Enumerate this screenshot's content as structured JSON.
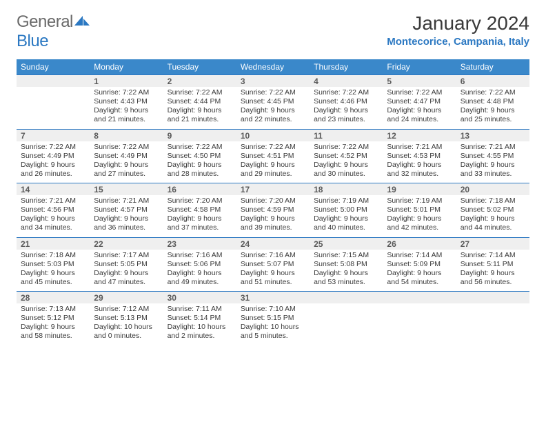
{
  "brand": {
    "name_part1": "General",
    "name_part2": "Blue"
  },
  "colors": {
    "header_bg": "#3a88ca",
    "brand_blue": "#2b78c2",
    "daybar_bg": "#efefef",
    "text": "#3a3a3a"
  },
  "title": "January 2024",
  "location": "Montecorice, Campania, Italy",
  "weekdays": [
    "Sunday",
    "Monday",
    "Tuesday",
    "Wednesday",
    "Thursday",
    "Friday",
    "Saturday"
  ],
  "weeks": [
    [
      null,
      {
        "n": "1",
        "sunrise": "Sunrise: 7:22 AM",
        "sunset": "Sunset: 4:43 PM",
        "daylight": "Daylight: 9 hours and 21 minutes."
      },
      {
        "n": "2",
        "sunrise": "Sunrise: 7:22 AM",
        "sunset": "Sunset: 4:44 PM",
        "daylight": "Daylight: 9 hours and 21 minutes."
      },
      {
        "n": "3",
        "sunrise": "Sunrise: 7:22 AM",
        "sunset": "Sunset: 4:45 PM",
        "daylight": "Daylight: 9 hours and 22 minutes."
      },
      {
        "n": "4",
        "sunrise": "Sunrise: 7:22 AM",
        "sunset": "Sunset: 4:46 PM",
        "daylight": "Daylight: 9 hours and 23 minutes."
      },
      {
        "n": "5",
        "sunrise": "Sunrise: 7:22 AM",
        "sunset": "Sunset: 4:47 PM",
        "daylight": "Daylight: 9 hours and 24 minutes."
      },
      {
        "n": "6",
        "sunrise": "Sunrise: 7:22 AM",
        "sunset": "Sunset: 4:48 PM",
        "daylight": "Daylight: 9 hours and 25 minutes."
      }
    ],
    [
      {
        "n": "7",
        "sunrise": "Sunrise: 7:22 AM",
        "sunset": "Sunset: 4:49 PM",
        "daylight": "Daylight: 9 hours and 26 minutes."
      },
      {
        "n": "8",
        "sunrise": "Sunrise: 7:22 AM",
        "sunset": "Sunset: 4:49 PM",
        "daylight": "Daylight: 9 hours and 27 minutes."
      },
      {
        "n": "9",
        "sunrise": "Sunrise: 7:22 AM",
        "sunset": "Sunset: 4:50 PM",
        "daylight": "Daylight: 9 hours and 28 minutes."
      },
      {
        "n": "10",
        "sunrise": "Sunrise: 7:22 AM",
        "sunset": "Sunset: 4:51 PM",
        "daylight": "Daylight: 9 hours and 29 minutes."
      },
      {
        "n": "11",
        "sunrise": "Sunrise: 7:22 AM",
        "sunset": "Sunset: 4:52 PM",
        "daylight": "Daylight: 9 hours and 30 minutes."
      },
      {
        "n": "12",
        "sunrise": "Sunrise: 7:21 AM",
        "sunset": "Sunset: 4:53 PM",
        "daylight": "Daylight: 9 hours and 32 minutes."
      },
      {
        "n": "13",
        "sunrise": "Sunrise: 7:21 AM",
        "sunset": "Sunset: 4:55 PM",
        "daylight": "Daylight: 9 hours and 33 minutes."
      }
    ],
    [
      {
        "n": "14",
        "sunrise": "Sunrise: 7:21 AM",
        "sunset": "Sunset: 4:56 PM",
        "daylight": "Daylight: 9 hours and 34 minutes."
      },
      {
        "n": "15",
        "sunrise": "Sunrise: 7:21 AM",
        "sunset": "Sunset: 4:57 PM",
        "daylight": "Daylight: 9 hours and 36 minutes."
      },
      {
        "n": "16",
        "sunrise": "Sunrise: 7:20 AM",
        "sunset": "Sunset: 4:58 PM",
        "daylight": "Daylight: 9 hours and 37 minutes."
      },
      {
        "n": "17",
        "sunrise": "Sunrise: 7:20 AM",
        "sunset": "Sunset: 4:59 PM",
        "daylight": "Daylight: 9 hours and 39 minutes."
      },
      {
        "n": "18",
        "sunrise": "Sunrise: 7:19 AM",
        "sunset": "Sunset: 5:00 PM",
        "daylight": "Daylight: 9 hours and 40 minutes."
      },
      {
        "n": "19",
        "sunrise": "Sunrise: 7:19 AM",
        "sunset": "Sunset: 5:01 PM",
        "daylight": "Daylight: 9 hours and 42 minutes."
      },
      {
        "n": "20",
        "sunrise": "Sunrise: 7:18 AM",
        "sunset": "Sunset: 5:02 PM",
        "daylight": "Daylight: 9 hours and 44 minutes."
      }
    ],
    [
      {
        "n": "21",
        "sunrise": "Sunrise: 7:18 AM",
        "sunset": "Sunset: 5:03 PM",
        "daylight": "Daylight: 9 hours and 45 minutes."
      },
      {
        "n": "22",
        "sunrise": "Sunrise: 7:17 AM",
        "sunset": "Sunset: 5:05 PM",
        "daylight": "Daylight: 9 hours and 47 minutes."
      },
      {
        "n": "23",
        "sunrise": "Sunrise: 7:16 AM",
        "sunset": "Sunset: 5:06 PM",
        "daylight": "Daylight: 9 hours and 49 minutes."
      },
      {
        "n": "24",
        "sunrise": "Sunrise: 7:16 AM",
        "sunset": "Sunset: 5:07 PM",
        "daylight": "Daylight: 9 hours and 51 minutes."
      },
      {
        "n": "25",
        "sunrise": "Sunrise: 7:15 AM",
        "sunset": "Sunset: 5:08 PM",
        "daylight": "Daylight: 9 hours and 53 minutes."
      },
      {
        "n": "26",
        "sunrise": "Sunrise: 7:14 AM",
        "sunset": "Sunset: 5:09 PM",
        "daylight": "Daylight: 9 hours and 54 minutes."
      },
      {
        "n": "27",
        "sunrise": "Sunrise: 7:14 AM",
        "sunset": "Sunset: 5:11 PM",
        "daylight": "Daylight: 9 hours and 56 minutes."
      }
    ],
    [
      {
        "n": "28",
        "sunrise": "Sunrise: 7:13 AM",
        "sunset": "Sunset: 5:12 PM",
        "daylight": "Daylight: 9 hours and 58 minutes."
      },
      {
        "n": "29",
        "sunrise": "Sunrise: 7:12 AM",
        "sunset": "Sunset: 5:13 PM",
        "daylight": "Daylight: 10 hours and 0 minutes."
      },
      {
        "n": "30",
        "sunrise": "Sunrise: 7:11 AM",
        "sunset": "Sunset: 5:14 PM",
        "daylight": "Daylight: 10 hours and 2 minutes."
      },
      {
        "n": "31",
        "sunrise": "Sunrise: 7:10 AM",
        "sunset": "Sunset: 5:15 PM",
        "daylight": "Daylight: 10 hours and 5 minutes."
      },
      null,
      null,
      null
    ]
  ]
}
